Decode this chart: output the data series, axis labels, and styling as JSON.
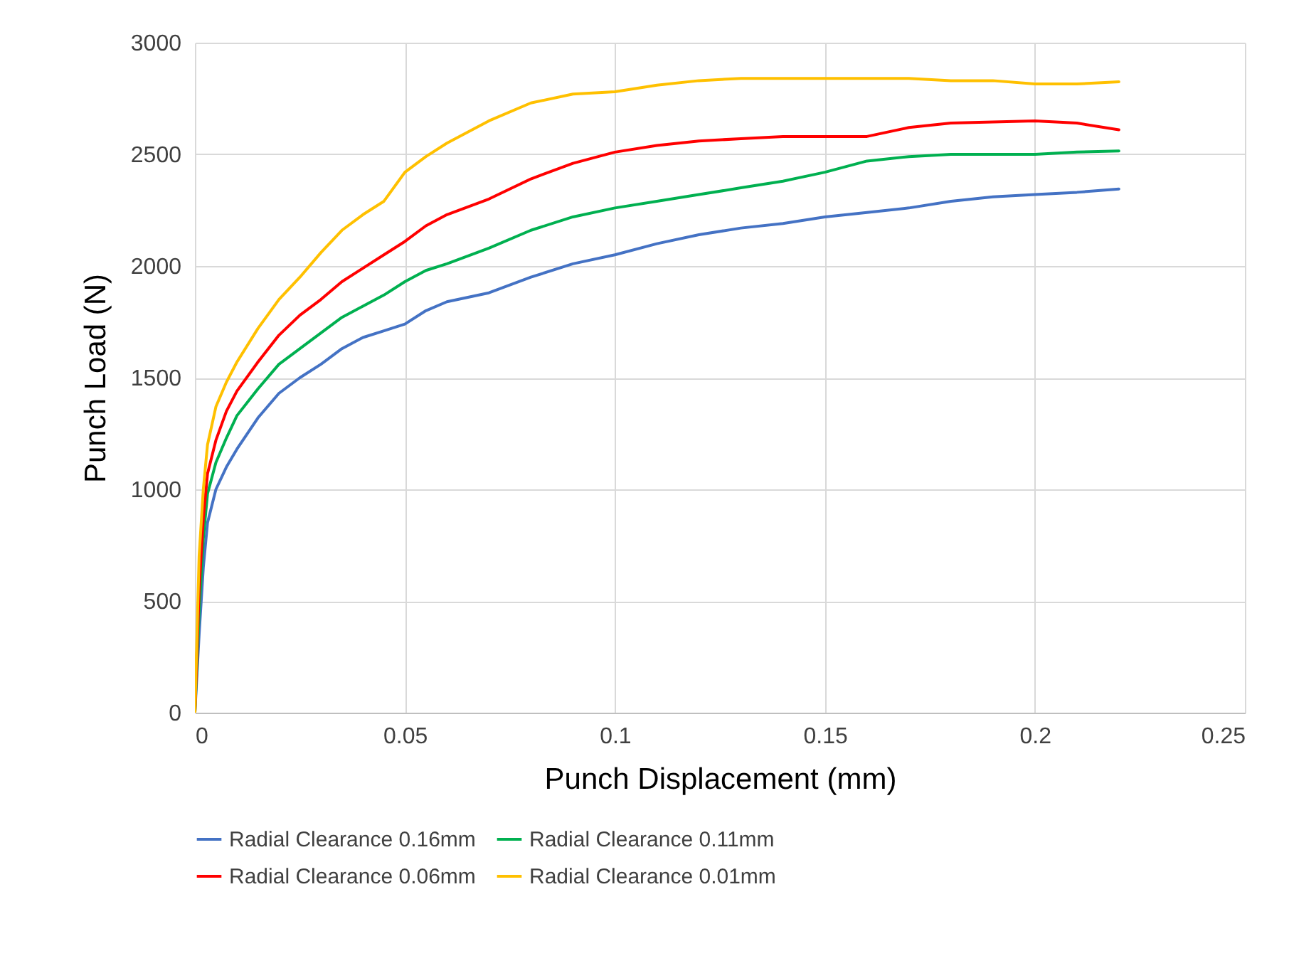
{
  "chart_data": {
    "type": "line",
    "xlabel": "Punch Displacement (mm)",
    "ylabel": "Punch Load (N)",
    "x": [
      0,
      0.001,
      0.002,
      0.003,
      0.005,
      0.0075,
      0.01,
      0.015,
      0.02,
      0.025,
      0.03,
      0.035,
      0.04,
      0.045,
      0.05,
      0.055,
      0.06,
      0.07,
      0.08,
      0.09,
      0.1,
      0.11,
      0.12,
      0.13,
      0.14,
      0.15,
      0.16,
      0.17,
      0.18,
      0.19,
      0.2,
      0.21,
      0.22
    ],
    "series": [
      {
        "name": "Radial Clearance 0.16mm",
        "color": "#4472c4",
        "values": [
          0,
          350,
          650,
          850,
          1000,
          1100,
          1180,
          1320,
          1430,
          1500,
          1560,
          1630,
          1680,
          1710,
          1740,
          1800,
          1840,
          1880,
          1950,
          2010,
          2050,
          2100,
          2140,
          2170,
          2190,
          2220,
          2240,
          2260,
          2290,
          2310,
          2320,
          2330,
          2345
        ]
      },
      {
        "name": "Radial Clearance 0.11mm",
        "color": "#00b050",
        "values": [
          0,
          450,
          780,
          980,
          1120,
          1230,
          1330,
          1450,
          1560,
          1630,
          1700,
          1770,
          1820,
          1870,
          1930,
          1980,
          2010,
          2080,
          2160,
          2220,
          2260,
          2290,
          2320,
          2350,
          2380,
          2420,
          2470,
          2490,
          2500,
          2500,
          2500,
          2510,
          2515
        ]
      },
      {
        "name": "Radial Clearance 0.06mm",
        "color": "#ff0000",
        "values": [
          0,
          550,
          870,
          1070,
          1220,
          1350,
          1440,
          1570,
          1690,
          1780,
          1850,
          1930,
          1990,
          2050,
          2110,
          2180,
          2230,
          2300,
          2390,
          2460,
          2510,
          2540,
          2560,
          2570,
          2580,
          2580,
          2580,
          2620,
          2640,
          2645,
          2650,
          2640,
          2610
        ]
      },
      {
        "name": "Radial Clearance 0.01mm",
        "color": "#ffc000",
        "values": [
          0,
          700,
          1000,
          1200,
          1370,
          1480,
          1570,
          1720,
          1850,
          1950,
          2060,
          2160,
          2230,
          2290,
          2420,
          2490,
          2550,
          2650,
          2730,
          2770,
          2780,
          2810,
          2830,
          2840,
          2840,
          2840,
          2840,
          2840,
          2830,
          2830,
          2815,
          2815,
          2825
        ]
      }
    ],
    "xlim": [
      0,
      0.25
    ],
    "xticks": [
      0,
      0.05,
      0.1,
      0.15,
      0.2,
      0.25
    ],
    "ylim": [
      0,
      3000
    ],
    "yticks": [
      0,
      500,
      1000,
      1500,
      2000,
      2500,
      3000
    ],
    "grid": true,
    "legend": "bottom",
    "marker": "none",
    "line_style": "solid"
  }
}
